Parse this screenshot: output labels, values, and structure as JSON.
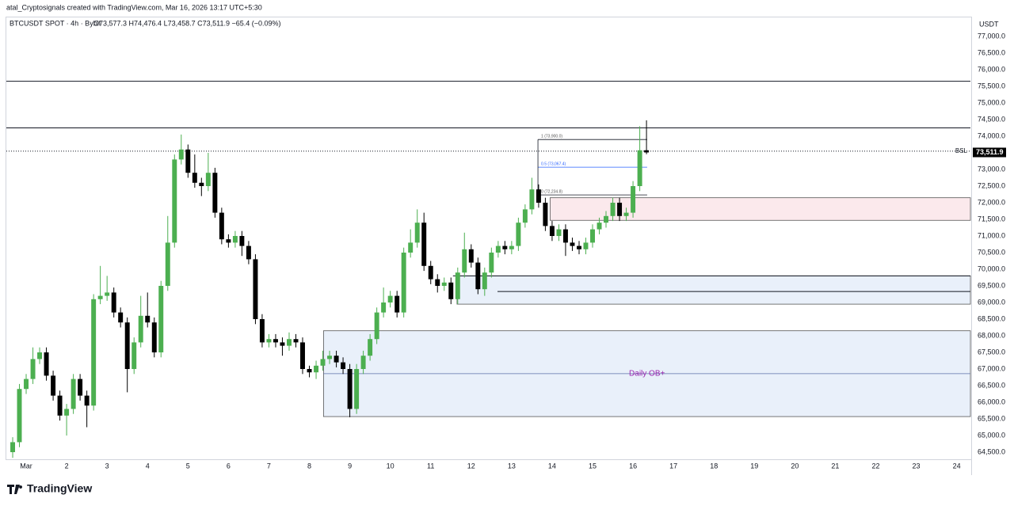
{
  "chart_data": {
    "type": "candlestick",
    "watermark": "atal_Cryptosignals created with TradingView.com, Mar 16, 2026 13:17 UTC+5:30",
    "symbol": "BTCUSDT SPOT · 4h · Bybit",
    "ohlc_text": "O73,577.3 H74,476.4 L73,458.7 C73,511.9 −65.4 (−0.09%)",
    "unit": "USDT",
    "last_price_label": "73,511.9",
    "brand": "TradingView",
    "up_color": "#4caf50",
    "down_color": "#000000",
    "xlim": [
      0.51,
      24.34
    ],
    "ylim": [
      64286,
      77571
    ],
    "xticks": [
      {
        "value": 1,
        "label": "Mar"
      },
      2,
      3,
      4,
      5,
      6,
      7,
      8,
      9,
      10,
      11,
      12,
      13,
      14,
      15,
      16,
      17,
      18,
      19,
      20,
      21,
      22,
      23,
      24
    ],
    "yticks": [
      {
        "value": 64500,
        "label": "64,500.0"
      },
      {
        "value": 65000,
        "label": "65,000.0"
      },
      {
        "value": 65500,
        "label": "65,500.0"
      },
      {
        "value": 66000,
        "label": "66,000.0"
      },
      {
        "value": 66500,
        "label": "66,500.0"
      },
      {
        "value": 67000,
        "label": "67,000.0"
      },
      {
        "value": 67500,
        "label": "67,500.0"
      },
      {
        "value": 68000,
        "label": "68,000.0"
      },
      {
        "value": 68500,
        "label": "68,500.0"
      },
      {
        "value": 69000,
        "label": "69,000.0"
      },
      {
        "value": 69500,
        "label": "69,500.0"
      },
      {
        "value": 70000,
        "label": "70,000.0"
      },
      {
        "value": 70500,
        "label": "70,500.0"
      },
      {
        "value": 71000,
        "label": "71,000.0"
      },
      {
        "value": 71500,
        "label": "71,500.0"
      },
      {
        "value": 72000,
        "label": "72,000.0"
      },
      {
        "value": 72500,
        "label": "72,500.0"
      },
      {
        "value": 73000,
        "label": "73,000.0"
      },
      {
        "value": 73500,
        "label": "73,500.0"
      },
      {
        "value": 74000,
        "label": "74,000.0"
      },
      {
        "value": 74500,
        "label": "74,500.0"
      },
      {
        "value": 75000,
        "label": "75,000.0"
      },
      {
        "value": 75500,
        "label": "75,500.0"
      },
      {
        "value": 76000,
        "label": "76,000.0"
      },
      {
        "value": 76500,
        "label": "76,500.0"
      },
      {
        "value": 77000,
        "label": "77,000.0"
      }
    ],
    "x": [
      0.667,
      0.833,
      1,
      1.167,
      1.333,
      1.5,
      1.667,
      1.833,
      2,
      2.167,
      2.333,
      2.5,
      2.667,
      2.833,
      3,
      3.167,
      3.333,
      3.5,
      3.667,
      3.833,
      4,
      4.167,
      4.333,
      4.5,
      4.667,
      4.833,
      5,
      5.167,
      5.333,
      5.5,
      5.667,
      5.833,
      6,
      6.167,
      6.333,
      6.5,
      6.667,
      6.833,
      7,
      7.167,
      7.333,
      7.5,
      7.667,
      7.833,
      8,
      8.167,
      8.333,
      8.5,
      8.667,
      8.833,
      9,
      9.167,
      9.333,
      9.5,
      9.667,
      9.833,
      10,
      10.167,
      10.333,
      10.5,
      10.667,
      10.833,
      11,
      11.167,
      11.333,
      11.5,
      11.667,
      11.833,
      12,
      12.167,
      12.333,
      12.5,
      12.667,
      12.833,
      13,
      13.167,
      13.333,
      13.5,
      13.667,
      13.833,
      14,
      14.167,
      14.333,
      14.5,
      14.667,
      14.833,
      15,
      15.167,
      15.333,
      15.5,
      15.667,
      15.833,
      16,
      16.167,
      16.333
    ],
    "open": [
      64500,
      64800,
      66400,
      66700,
      67300,
      67500,
      66800,
      66200,
      65600,
      65800,
      66700,
      66200,
      65900,
      69100,
      69200,
      69300,
      68700,
      68400,
      67000,
      67800,
      68600,
      68400,
      67500,
      69500,
      70800,
      73300,
      73600,
      72900,
      72600,
      72500,
      72900,
      71700,
      70900,
      70800,
      71000,
      70700,
      70300,
      68500,
      67800,
      67900,
      67800,
      67700,
      67900,
      67800,
      67000,
      66900,
      67100,
      67300,
      67400,
      67200,
      67000,
      65800,
      67000,
      67400,
      67900,
      68700,
      69000,
      69200,
      68700,
      70500,
      70800,
      71400,
      70100,
      69700,
      69500,
      69600,
      69100,
      69900,
      70600,
      70200,
      69400,
      69900,
      70500,
      70700,
      70600,
      70700,
      71400,
      71800,
      72400,
      72000,
      71300,
      71000,
      71200,
      70800,
      70700,
      70600,
      70800,
      71200,
      71400,
      71600,
      72000,
      71600,
      71700,
      72500,
      73577.3
    ],
    "high": [
      64950,
      66550,
      66850,
      67650,
      67650,
      67650,
      66950,
      66350,
      65950,
      66850,
      66850,
      66350,
      69250,
      70100,
      69800,
      69450,
      68850,
      68550,
      67950,
      69200,
      69300,
      68550,
      69650,
      71600,
      73450,
      74050,
      73750,
      73450,
      72750,
      73500,
      73050,
      71850,
      71050,
      71150,
      71150,
      70850,
      70450,
      68650,
      68050,
      68050,
      67950,
      68100,
      68050,
      67950,
      67100,
      67250,
      67550,
      67550,
      67550,
      67350,
      67150,
      67150,
      67550,
      68050,
      68850,
      69450,
      69350,
      69350,
      70650,
      71200,
      71800,
      71700,
      70250,
      69850,
      69750,
      69750,
      70050,
      71100,
      70750,
      70350,
      70050,
      70650,
      70850,
      70850,
      70850,
      71550,
      71950,
      72750,
      72550,
      72150,
      71450,
      71350,
      71350,
      70950,
      70850,
      70950,
      71350,
      71550,
      71750,
      72150,
      72150,
      71850,
      72650,
      74300,
      74476.4
    ],
    "low": [
      64330,
      64650,
      66250,
      66550,
      67150,
      66650,
      66050,
      65450,
      65000,
      65650,
      66050,
      65250,
      65750,
      68950,
      69050,
      68550,
      68250,
      66300,
      66850,
      67650,
      68250,
      67350,
      67350,
      69350,
      70650,
      73150,
      72750,
      72450,
      72200,
      72350,
      71550,
      70750,
      70650,
      70650,
      70400,
      70150,
      68350,
      67650,
      67650,
      67650,
      67400,
      67550,
      67650,
      66850,
      66750,
      66700,
      66950,
      67150,
      67050,
      66850,
      65550,
      65650,
      66850,
      67250,
      67750,
      68550,
      68850,
      68550,
      68550,
      70350,
      70650,
      69950,
      69550,
      69300,
      69350,
      68950,
      68950,
      69750,
      70050,
      69250,
      69200,
      69750,
      70350,
      70450,
      70450,
      70550,
      71250,
      71650,
      71850,
      71150,
      70850,
      70850,
      70400,
      70550,
      70450,
      70450,
      70650,
      71050,
      71250,
      71450,
      71450,
      71450,
      71550,
      72350,
      73458.7
    ],
    "close": [
      64800,
      66400,
      66700,
      67300,
      67500,
      66800,
      66200,
      65600,
      65800,
      66700,
      66200,
      65900,
      69100,
      69200,
      69300,
      68700,
      68400,
      67000,
      67800,
      68600,
      68400,
      67500,
      69500,
      70800,
      73300,
      73600,
      72900,
      72600,
      72500,
      72900,
      71700,
      70900,
      70800,
      71000,
      70700,
      70300,
      68500,
      67800,
      67900,
      67800,
      67700,
      67900,
      67800,
      67000,
      66900,
      67100,
      67300,
      67400,
      67200,
      67000,
      65800,
      67000,
      67400,
      67900,
      68700,
      69000,
      69200,
      68700,
      70500,
      70800,
      71400,
      70100,
      69700,
      69500,
      69600,
      69100,
      69900,
      70600,
      70200,
      69400,
      69900,
      70500,
      70700,
      70600,
      70700,
      71400,
      71800,
      72400,
      72000,
      71300,
      71000,
      71200,
      70800,
      70700,
      70600,
      70800,
      71200,
      71400,
      71600,
      72000,
      71600,
      71700,
      72500,
      73577.3,
      73511.9
    ],
    "zones": [
      {
        "from": 8.35,
        "low": 65570,
        "high": 68150,
        "mid": 66860,
        "label": "Daily OB+",
        "color": "#e9f0fa"
      },
      {
        "from": 11.65,
        "low": 68950,
        "high": 69800,
        "color": "#e9f0fa"
      },
      {
        "from": 13.95,
        "low": 71470,
        "high": 72150,
        "color": "#fbe9ec"
      }
    ],
    "lines": [
      {
        "from": 0.51,
        "value": 75650
      },
      {
        "from": 0.51,
        "value": 74250
      },
      {
        "from": 0.51,
        "value": 73550,
        "label": "BSL",
        "dotted": true
      },
      {
        "from": 11.55,
        "value": 69800
      },
      {
        "from": 12.65,
        "value": 69330
      }
    ],
    "fib": {
      "from": 13.65,
      "to": 16.35,
      "levels": [
        {
          "value": 73900,
          "label": "1 (73,900.0)"
        },
        {
          "value": 73067.4,
          "label": "0.5 (73,067.4)"
        },
        {
          "value": 72234.8,
          "label": "0 (72,234.8)"
        }
      ]
    }
  }
}
